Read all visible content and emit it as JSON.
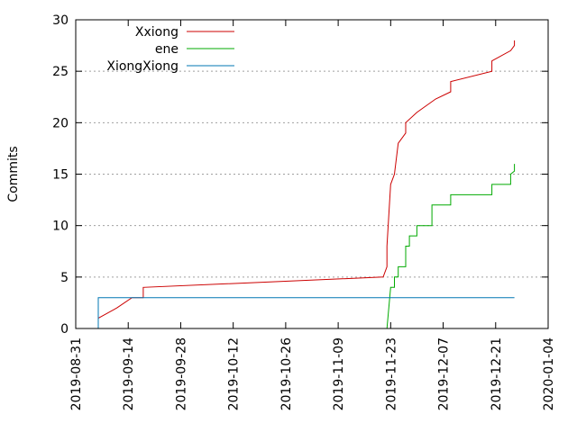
{
  "chart_data": {
    "type": "line",
    "ylabel": "Commits",
    "xlabel": "",
    "ylim": [
      0,
      30
    ],
    "xlim": [
      "2019-08-31",
      "2020-01-04"
    ],
    "y_ticks": [
      "0",
      "5",
      "10",
      "15",
      "20",
      "25",
      "30"
    ],
    "x_ticks": [
      "2019-08-31",
      "2019-09-14",
      "2019-09-28",
      "2019-10-12",
      "2019-10-26",
      "2019-11-09",
      "2019-11-23",
      "2019-12-07",
      "2019-12-21",
      "2020-01-04"
    ],
    "grid": "horizontal dotted",
    "legend_position": "top-left",
    "series": [
      {
        "name": "Xxiong",
        "color": "#cc0000",
        "points": [
          [
            "2019-09-06",
            0
          ],
          [
            "2019-09-06",
            1
          ],
          [
            "2019-09-11",
            2
          ],
          [
            "2019-09-15",
            3
          ],
          [
            "2019-09-18",
            3
          ],
          [
            "2019-09-18",
            4
          ],
          [
            "2019-11-21",
            5
          ],
          [
            "2019-11-22",
            6
          ],
          [
            "2019-11-22",
            8
          ],
          [
            "2019-11-23",
            14
          ],
          [
            "2019-11-24",
            15
          ],
          [
            "2019-11-25",
            18
          ],
          [
            "2019-11-27",
            19
          ],
          [
            "2019-11-27",
            20
          ],
          [
            "2019-11-30",
            21
          ],
          [
            "2019-12-05",
            22.3
          ],
          [
            "2019-12-09",
            23
          ],
          [
            "2019-12-09",
            24
          ],
          [
            "2019-12-20",
            25
          ],
          [
            "2019-12-20",
            26
          ],
          [
            "2019-12-25",
            27
          ],
          [
            "2019-12-26",
            27.5
          ],
          [
            "2019-12-26",
            28
          ]
        ]
      },
      {
        "name": "ene",
        "color": "#00aa00",
        "points": [
          [
            "2019-11-22",
            0
          ],
          [
            "2019-11-23",
            4
          ],
          [
            "2019-11-24",
            4
          ],
          [
            "2019-11-24",
            5
          ],
          [
            "2019-11-25",
            5
          ],
          [
            "2019-11-25",
            6
          ],
          [
            "2019-11-27",
            6
          ],
          [
            "2019-11-27",
            8
          ],
          [
            "2019-11-28",
            8
          ],
          [
            "2019-11-28",
            9
          ],
          [
            "2019-11-30",
            9
          ],
          [
            "2019-11-30",
            10
          ],
          [
            "2019-12-04",
            10
          ],
          [
            "2019-12-04",
            12
          ],
          [
            "2019-12-09",
            12
          ],
          [
            "2019-12-09",
            13
          ],
          [
            "2019-12-20",
            13
          ],
          [
            "2019-12-20",
            14
          ],
          [
            "2019-12-25",
            14
          ],
          [
            "2019-12-25",
            15
          ],
          [
            "2019-12-26",
            15.3
          ],
          [
            "2019-12-26",
            16
          ]
        ]
      },
      {
        "name": "XiongXiong",
        "color": "#0077b3",
        "points": [
          [
            "2019-09-06",
            0
          ],
          [
            "2019-09-06",
            3
          ],
          [
            "2019-12-26",
            3
          ]
        ]
      }
    ]
  }
}
